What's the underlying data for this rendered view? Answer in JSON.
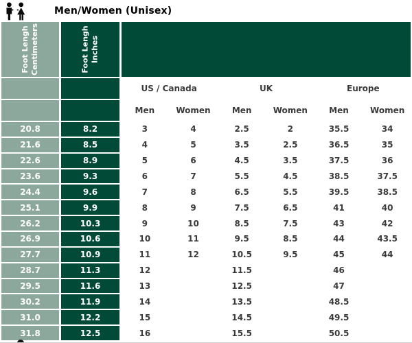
{
  "title": {
    "text": "Men/Women (Unisex)"
  },
  "colors": {
    "sage": "#8CA79B",
    "dark_green": "#014A37",
    "text_dark": "#3A3A3A"
  },
  "table": {
    "col1_header": {
      "line1": "Foot Lengh",
      "line2": "Centimeters"
    },
    "col2_header": {
      "line1": "Foot Lengh",
      "line2": "Inches"
    },
    "groups": [
      "US / Canada",
      "UK",
      "Europe"
    ],
    "subheaders": [
      "Men",
      "Women",
      "Men",
      "Women",
      "Men",
      "Women"
    ],
    "rows": [
      {
        "cm": "20.8",
        "inches": "8.2",
        "sizes": [
          "3",
          "4",
          "2.5",
          "2",
          "35.5",
          "34"
        ]
      },
      {
        "cm": "21.6",
        "inches": "8.5",
        "sizes": [
          "4",
          "5",
          "3.5",
          "2.5",
          "36.5",
          "35"
        ]
      },
      {
        "cm": "22.6",
        "inches": "8.9",
        "sizes": [
          "5",
          "6",
          "4.5",
          "3.5",
          "37.5",
          "36"
        ]
      },
      {
        "cm": "23.6",
        "inches": "9.3",
        "sizes": [
          "6",
          "7",
          "5.5",
          "4.5",
          "38.5",
          "37.5"
        ]
      },
      {
        "cm": "24.4",
        "inches": "9.6",
        "sizes": [
          "7",
          "8",
          "6.5",
          "5.5",
          "39.5",
          "38.5"
        ]
      },
      {
        "cm": "25.1",
        "inches": "9.9",
        "sizes": [
          "8",
          "9",
          "7.5",
          "6.5",
          "41",
          "40"
        ]
      },
      {
        "cm": "26.2",
        "inches": "10.3",
        "sizes": [
          "9",
          "10",
          "8.5",
          "7.5",
          "43",
          "42"
        ]
      },
      {
        "cm": "26.9",
        "inches": "10.6",
        "sizes": [
          "10",
          "11",
          "9.5",
          "8.5",
          "44",
          "43.5"
        ]
      },
      {
        "cm": "27.7",
        "inches": "10.9",
        "sizes": [
          "11",
          "12",
          "10.5",
          "9.5",
          "45",
          "44"
        ]
      },
      {
        "cm": "28.7",
        "inches": "11.3",
        "sizes": [
          "12",
          "",
          "11.5",
          "",
          "46",
          ""
        ]
      },
      {
        "cm": "29.5",
        "inches": "11.6",
        "sizes": [
          "13",
          "",
          "12.5",
          "",
          "47",
          ""
        ]
      },
      {
        "cm": "30.2",
        "inches": "11.9",
        "sizes": [
          "14",
          "",
          "13.5",
          "",
          "48.5",
          ""
        ]
      },
      {
        "cm": "31.0",
        "inches": "12.2",
        "sizes": [
          "15",
          "",
          "14.5",
          "",
          "49.5",
          ""
        ]
      },
      {
        "cm": "31.8",
        "inches": "12.5",
        "sizes": [
          "16",
          "",
          "15.5",
          "",
          "50.5",
          ""
        ]
      }
    ]
  },
  "chart_data": {
    "type": "table",
    "title": "Men/Women (Unisex)",
    "columns": [
      "Foot Lengh Centimeters",
      "Foot Lengh Inches",
      "US / Canada Men",
      "US / Canada Women",
      "UK Men",
      "UK Women",
      "Europe Men",
      "Europe Women"
    ],
    "rows": [
      [
        "20.8",
        "8.2",
        "3",
        "4",
        "2.5",
        "2",
        "35.5",
        "34"
      ],
      [
        "21.6",
        "8.5",
        "4",
        "5",
        "3.5",
        "2.5",
        "36.5",
        "35"
      ],
      [
        "22.6",
        "8.9",
        "5",
        "6",
        "4.5",
        "3.5",
        "37.5",
        "36"
      ],
      [
        "23.6",
        "9.3",
        "6",
        "7",
        "5.5",
        "4.5",
        "38.5",
        "37.5"
      ],
      [
        "24.4",
        "9.6",
        "7",
        "8",
        "6.5",
        "5.5",
        "39.5",
        "38.5"
      ],
      [
        "25.1",
        "9.9",
        "8",
        "9",
        "7.5",
        "6.5",
        "41",
        "40"
      ],
      [
        "26.2",
        "10.3",
        "9",
        "10",
        "8.5",
        "7.5",
        "43",
        "42"
      ],
      [
        "26.9",
        "10.6",
        "10",
        "11",
        "9.5",
        "8.5",
        "44",
        "43.5"
      ],
      [
        "27.7",
        "10.9",
        "11",
        "12",
        "10.5",
        "9.5",
        "45",
        "44"
      ],
      [
        "28.7",
        "11.3",
        "12",
        "",
        "11.5",
        "",
        "46",
        ""
      ],
      [
        "29.5",
        "11.6",
        "13",
        "",
        "12.5",
        "",
        "47",
        ""
      ],
      [
        "30.2",
        "11.9",
        "14",
        "",
        "13.5",
        "",
        "48.5",
        ""
      ],
      [
        "31.0",
        "12.2",
        "15",
        "",
        "14.5",
        "",
        "49.5",
        ""
      ],
      [
        "31.8",
        "12.5",
        "16",
        "",
        "15.5",
        "",
        "50.5",
        ""
      ]
    ]
  }
}
